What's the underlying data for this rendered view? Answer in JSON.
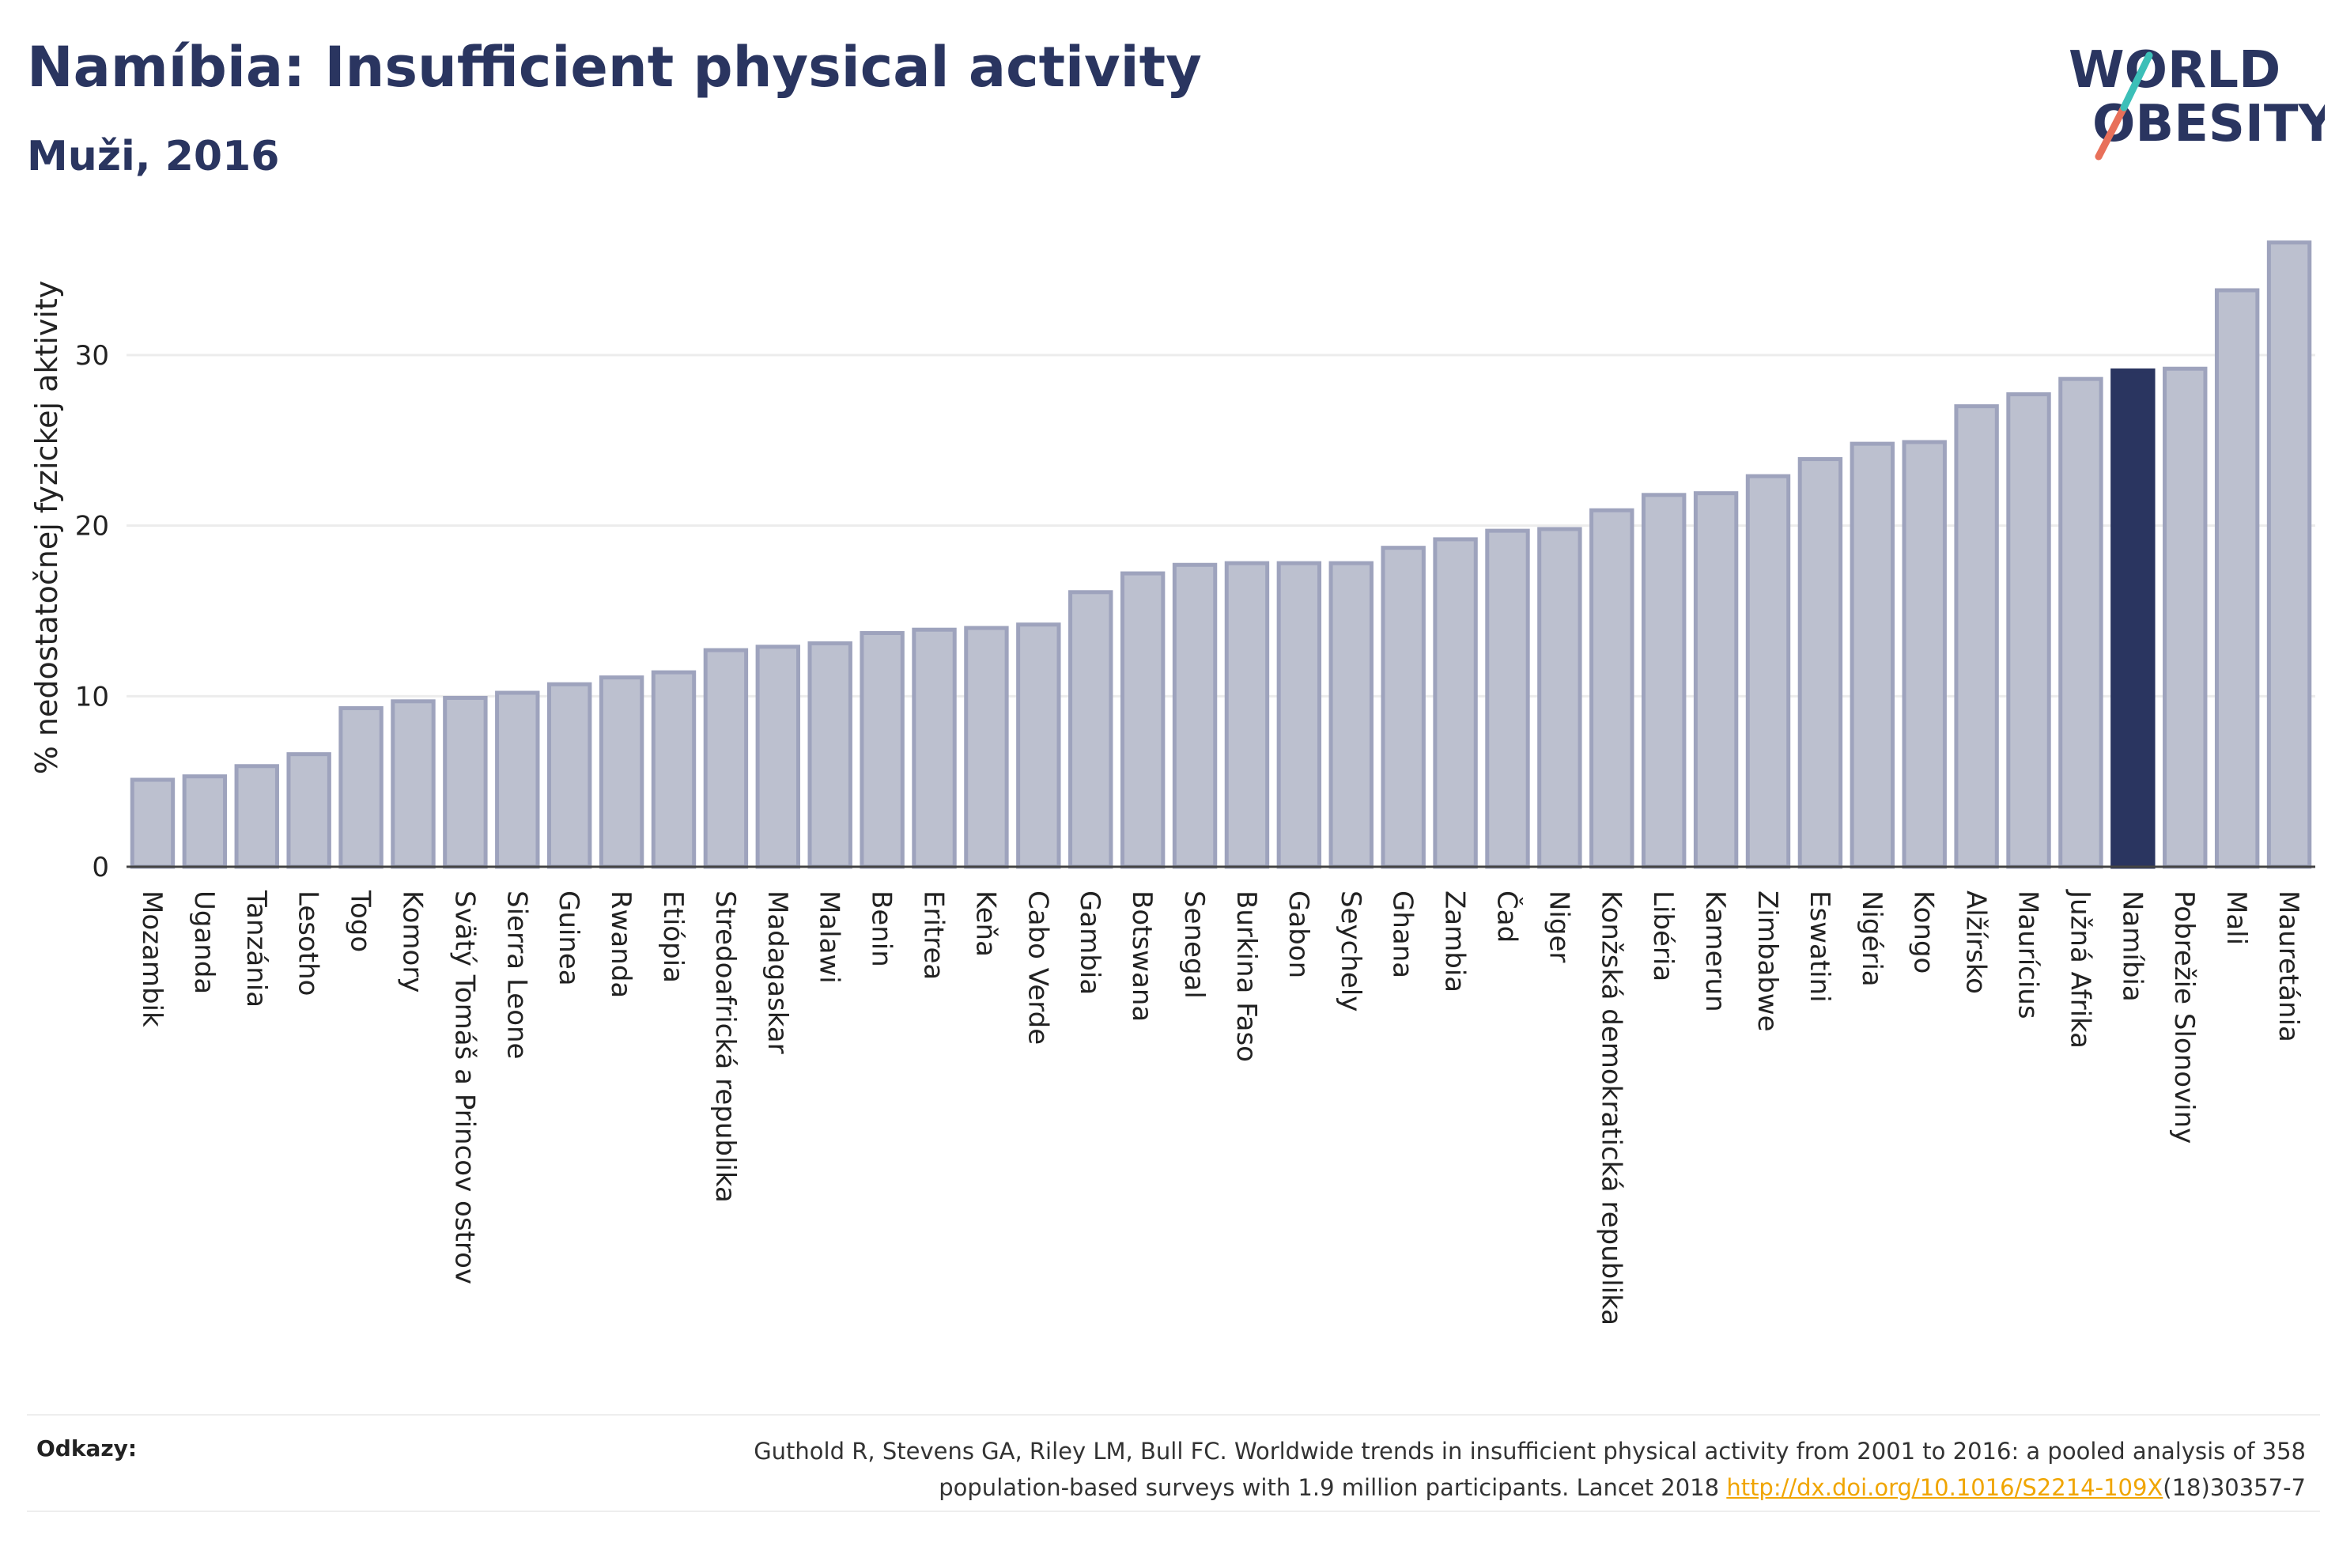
{
  "title": "Namíbia: Insufficient physical activity",
  "subtitle": "Muži, 2016",
  "logo": {
    "line1": "WORLD",
    "line2": "OBESITY"
  },
  "references": {
    "label": "Odkazy:",
    "text_line1": "Guthold R, Stevens GA, Riley LM, Bull FC. Worldwide trends in insufficient physical activity from 2001 to 2016: a pooled analysis of 358",
    "text_line2_before": "population-based surveys with 1.9 million participants. Lancet 2018 ",
    "link": "http://dx.doi.org/10.1016/S2214-109X",
    "text_line2_after": "(18)30357-7"
  },
  "colors": {
    "bar": "#bcc0cf",
    "bar_border": "#9ea3bd",
    "highlight": "#2a3560",
    "text": "#2a3560",
    "link": "#f0a500"
  },
  "chart_data": {
    "type": "bar",
    "ylabel": "% nedostatočnej fyzickej aktivity",
    "xlabel": "",
    "ylim": [
      0,
      37
    ],
    "yticks": [
      0,
      10,
      20,
      30
    ],
    "grid": true,
    "highlight": "Namíbia",
    "categories": [
      "Mozambik",
      "Uganda",
      "Tanzánia",
      "Lesotho",
      "Togo",
      "Komory",
      "Svätý Tomáš a Princov ostrov",
      "Sierra Leone",
      "Guinea",
      "Rwanda",
      "Etiópia",
      "Stredoafrická republika",
      "Madagaskar",
      "Malawi",
      "Benin",
      "Eritrea",
      "Keňa",
      "Cabo Verde",
      "Gambia",
      "Botswana",
      "Senegal",
      "Burkina Faso",
      "Gabon",
      "Seychely",
      "Ghana",
      "Zambia",
      "Čad",
      "Niger",
      "Konžská demokratická republika",
      "Libéria",
      "Kamerun",
      "Zimbabwe",
      "Eswatini",
      "Nigéria",
      "Kongo",
      "Alžírsko",
      "Maurícius",
      "Južná Afrika",
      "Namíbia",
      "Pobrežie Slonoviny",
      "Mali",
      "Mauretánia"
    ],
    "values": [
      5.1,
      5.3,
      5.9,
      6.6,
      9.3,
      9.7,
      9.9,
      10.2,
      10.7,
      11.1,
      11.4,
      12.7,
      12.9,
      13.1,
      13.7,
      13.9,
      14.0,
      14.2,
      16.1,
      17.2,
      17.7,
      17.8,
      17.8,
      17.8,
      18.7,
      19.2,
      19.7,
      19.8,
      20.9,
      21.8,
      21.9,
      22.9,
      23.9,
      24.8,
      24.9,
      27.0,
      27.7,
      28.6,
      29.1,
      29.2,
      33.8,
      36.6
    ]
  }
}
